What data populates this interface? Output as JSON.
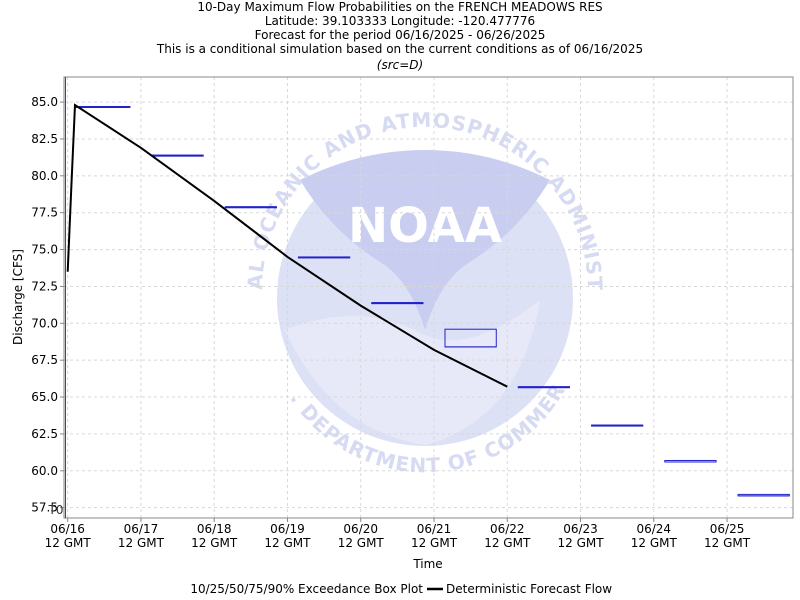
{
  "chart_data": {
    "type": "box",
    "title_lines": [
      "10-Day Maximum Flow Probabilities on the FRENCH MEADOWS RES",
      "Latitude: 39.103333 Longitude: -120.477776",
      "Forecast for the period 06/16/2025 - 06/26/2025",
      "This is a conditional simulation based on the current conditions as of 06/16/2025"
    ],
    "subtitle": "(src=D)",
    "xlabel": "Time",
    "ylabel": "Discharge [CFS]",
    "ylim": [
      56.8,
      86.7
    ],
    "y_ticks": [
      57.5,
      60.0,
      62.5,
      65.0,
      67.5,
      70.0,
      72.5,
      75.0,
      77.5,
      80.0,
      82.5,
      85.0
    ],
    "y_tick_labels": [
      "57.5",
      "60.0",
      "62.5",
      "65.0",
      "67.5",
      "70.0",
      "72.5",
      "75.0",
      "77.5",
      "80.0",
      "82.5",
      "85.0"
    ],
    "xlim": [
      -0.05,
      9.9
    ],
    "x_ticks": [
      0,
      1,
      2,
      3,
      4,
      5,
      6,
      7,
      8,
      9
    ],
    "x_tick_labels": [
      [
        "06/16",
        "12 GMT"
      ],
      [
        "06/17",
        "12 GMT"
      ],
      [
        "06/18",
        "12 GMT"
      ],
      [
        "06/19",
        "12 GMT"
      ],
      [
        "06/20",
        "12 GMT"
      ],
      [
        "06/21",
        "12 GMT"
      ],
      [
        "06/22",
        "12 GMT"
      ],
      [
        "06/23",
        "12 GMT"
      ],
      [
        "06/24",
        "12 GMT"
      ],
      [
        "06/25",
        "12 GMT"
      ]
    ],
    "t0_label": "T0",
    "t0_x": -0.03,
    "deterministic_forecast": {
      "name": "Deterministic Forecast Flow",
      "x": [
        0.0,
        0.05,
        0.1,
        1.0,
        2.0,
        3.0,
        4.0,
        5.0,
        6.0
      ],
      "y": [
        73.5,
        79.2,
        84.8,
        81.9,
        78.3,
        74.5,
        71.2,
        68.2,
        65.7
      ]
    },
    "boxes": [
      {
        "x_start": 0.1,
        "x_end": 0.85,
        "p10": 84.7,
        "p25": 84.7,
        "p50": 84.7,
        "p75": 84.7,
        "p90": 84.7
      },
      {
        "x_start": 1.15,
        "x_end": 1.85,
        "p10": 81.4,
        "p25": 81.4,
        "p50": 81.4,
        "p75": 81.4,
        "p90": 81.4
      },
      {
        "x_start": 2.15,
        "x_end": 2.85,
        "p10": 77.9,
        "p25": 77.9,
        "p50": 77.9,
        "p75": 77.9,
        "p90": 77.9
      },
      {
        "x_start": 3.15,
        "x_end": 3.85,
        "p10": 74.5,
        "p25": 74.5,
        "p50": 74.5,
        "p75": 74.5,
        "p90": 74.5
      },
      {
        "x_start": 4.15,
        "x_end": 4.85,
        "p10": 71.4,
        "p25": 71.4,
        "p50": 71.4,
        "p75": 71.4,
        "p90": 71.4
      },
      {
        "x_start": 5.15,
        "x_end": 5.85,
        "p10": 68.4,
        "p25": 68.4,
        "p50": 68.4,
        "p75": 69.6,
        "p90": 69.6
      },
      {
        "x_start": 6.15,
        "x_end": 6.85,
        "p10": 65.7,
        "p25": 65.7,
        "p50": 65.7,
        "p75": 65.7,
        "p90": 65.7
      },
      {
        "x_start": 7.15,
        "x_end": 7.85,
        "p10": 63.1,
        "p25": 63.1,
        "p50": 63.1,
        "p75": 63.1,
        "p90": 63.1
      },
      {
        "x_start": 8.15,
        "x_end": 8.85,
        "p10": 60.6,
        "p25": 60.6,
        "p50": 60.6,
        "p75": 60.7,
        "p90": 60.7
      },
      {
        "x_start": 9.15,
        "x_end": 9.85,
        "p10": 58.3,
        "p25": 58.3,
        "p50": 58.3,
        "p75": 58.4,
        "p90": 58.4
      }
    ],
    "legend": {
      "box_label": "10/25/50/75/90% Exceedance Box Plot",
      "line_label": "Deterministic Forecast Flow",
      "placement": "bottom-center"
    },
    "watermark": {
      "logo_text": "NOAA",
      "arc_top": "NATIONAL OCEANIC AND ATMOSPHERIC ADMINISTRATION",
      "arc_bottom": "U.S. DEPARTMENT OF COMMERCE"
    },
    "grid": true,
    "colors": {
      "box": "#2222cc",
      "line": "#000000",
      "grid": "#d8d8d8",
      "t0_line": "#3333cc",
      "watermark": "#d9ddf4"
    }
  }
}
